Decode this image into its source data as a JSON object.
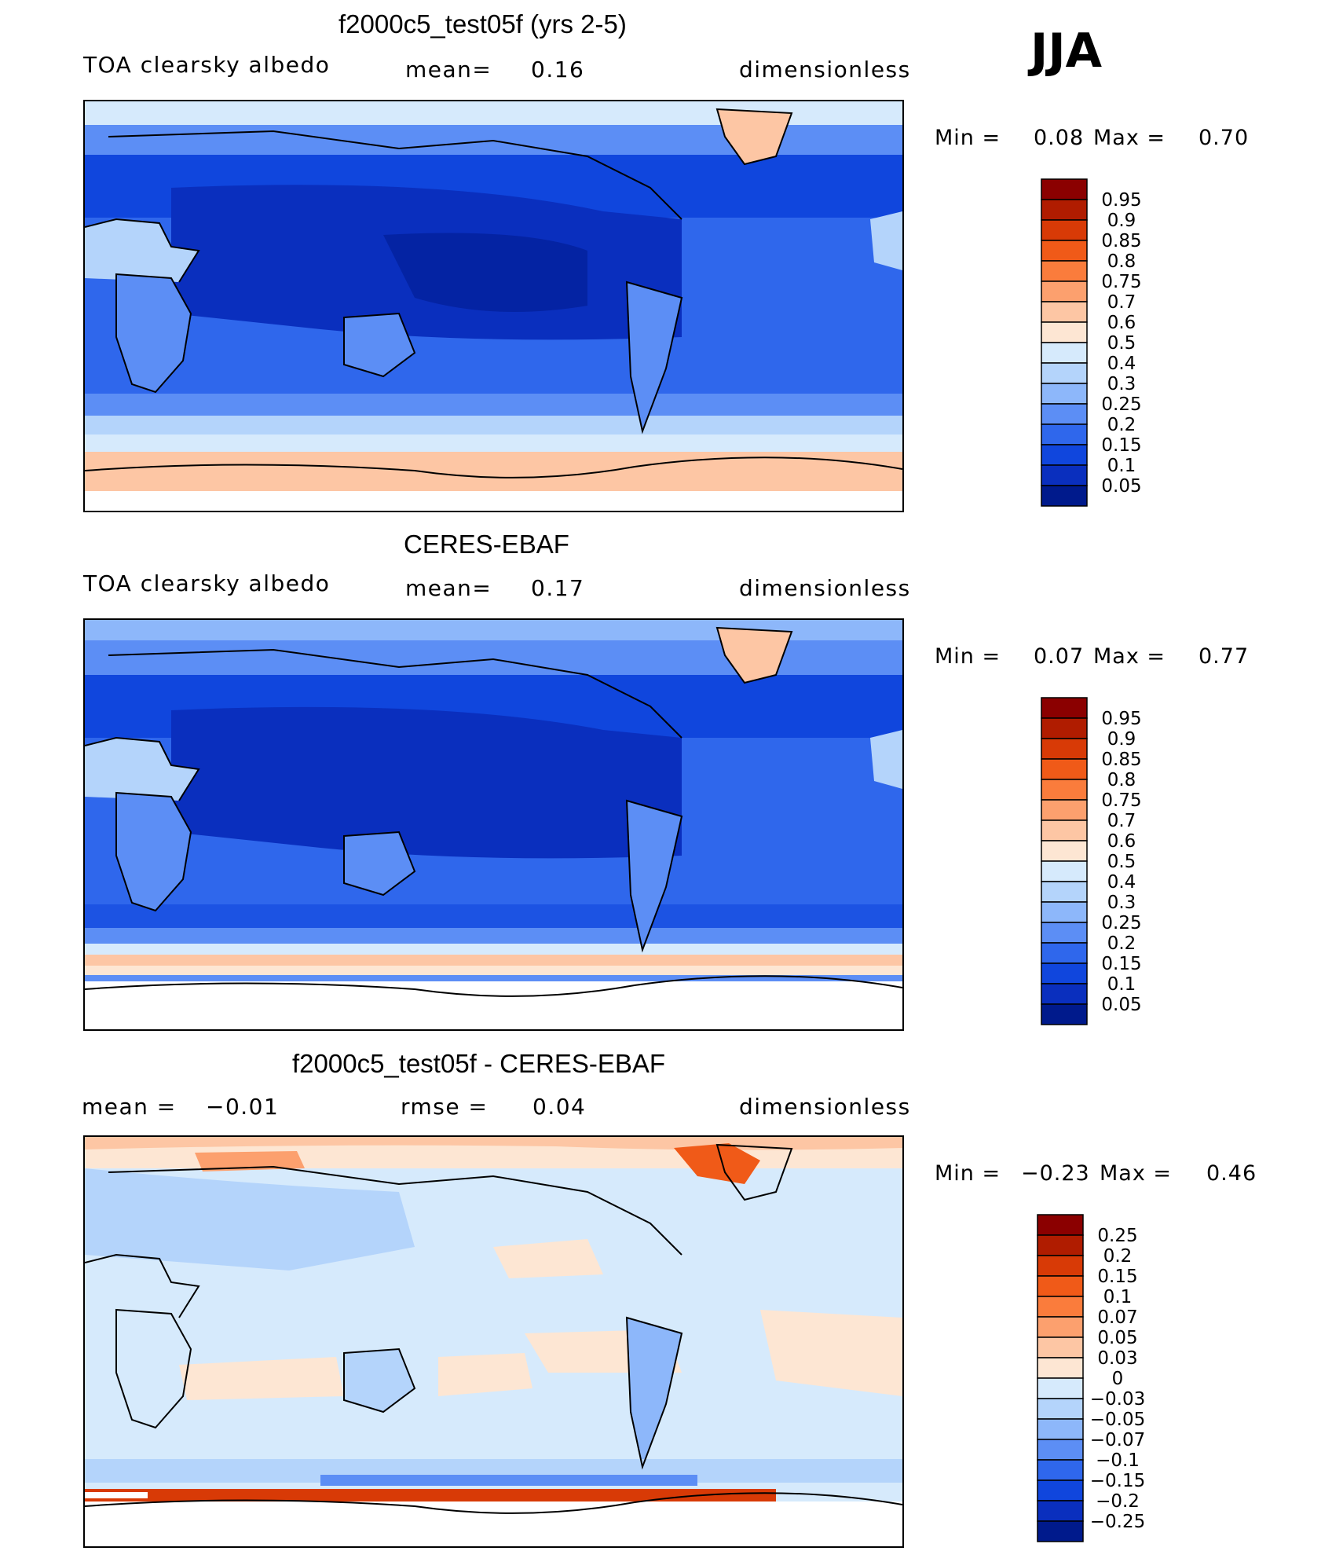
{
  "season": "JJA",
  "panels": [
    {
      "title": "f2000c5_test05f (yrs 2-5)",
      "left_label": "TOA clearsky albedo",
      "center_label": "mean=",
      "center_value": "0.16",
      "right_label": "dimensionless",
      "min_label": "Min =",
      "min_value": "0.08",
      "max_label": "Max =",
      "max_value": "0.70",
      "colorbar": {
        "labels": [
          "0.95",
          "0.9",
          "0.85",
          "0.8",
          "0.75",
          "0.7",
          "0.6",
          "0.5",
          "0.4",
          "0.3",
          "0.25",
          "0.2",
          "0.15",
          "0.1",
          "0.05"
        ],
        "colors": [
          "#8b0000",
          "#b01c00",
          "#d83a06",
          "#f05a18",
          "#fa7c3c",
          "#fca06e",
          "#fdc6a4",
          "#fde6d3",
          "#d6eafc",
          "#b4d4fb",
          "#8db7fa",
          "#5c8ef5",
          "#2f67ec",
          "#1046dd",
          "#0a2fbe",
          "#001a8c"
        ]
      }
    },
    {
      "title": "CERES-EBAF",
      "left_label": "TOA clearsky albedo",
      "center_label": "mean=",
      "center_value": "0.17",
      "right_label": "dimensionless",
      "min_label": "Min =",
      "min_value": "0.07",
      "max_label": "Max =",
      "max_value": "0.77",
      "colorbar": {
        "labels": [
          "0.95",
          "0.9",
          "0.85",
          "0.8",
          "0.75",
          "0.7",
          "0.6",
          "0.5",
          "0.4",
          "0.3",
          "0.25",
          "0.2",
          "0.15",
          "0.1",
          "0.05"
        ],
        "colors": [
          "#8b0000",
          "#b01c00",
          "#d83a06",
          "#f05a18",
          "#fa7c3c",
          "#fca06e",
          "#fdc6a4",
          "#fde6d3",
          "#d6eafc",
          "#b4d4fb",
          "#8db7fa",
          "#5c8ef5",
          "#2f67ec",
          "#1046dd",
          "#0a2fbe",
          "#001a8c"
        ]
      }
    },
    {
      "title": "f2000c5_test05f - CERES-EBAF",
      "left_label": "mean =",
      "left_value": "−0.01",
      "center_label": "rmse =",
      "center_value": "0.04",
      "right_label": "dimensionless",
      "min_label": "Min =",
      "min_value": "−0.23",
      "max_label": "Max =",
      "max_value": "0.46",
      "colorbar": {
        "labels": [
          "0.25",
          "0.2",
          "0.15",
          "0.1",
          "0.07",
          "0.05",
          "0.03",
          "0",
          "−0.03",
          "−0.05",
          "−0.07",
          "−0.1",
          "−0.15",
          "−0.2",
          "−0.25"
        ],
        "colors": [
          "#8b0000",
          "#b01c00",
          "#d83a06",
          "#f05a18",
          "#fa7c3c",
          "#fca06e",
          "#fdc6a4",
          "#fde6d3",
          "#d6eafc",
          "#b4d4fb",
          "#8db7fa",
          "#5c8ef5",
          "#2f67ec",
          "#1046dd",
          "#0a2fbe",
          "#001a8c"
        ]
      }
    }
  ]
}
